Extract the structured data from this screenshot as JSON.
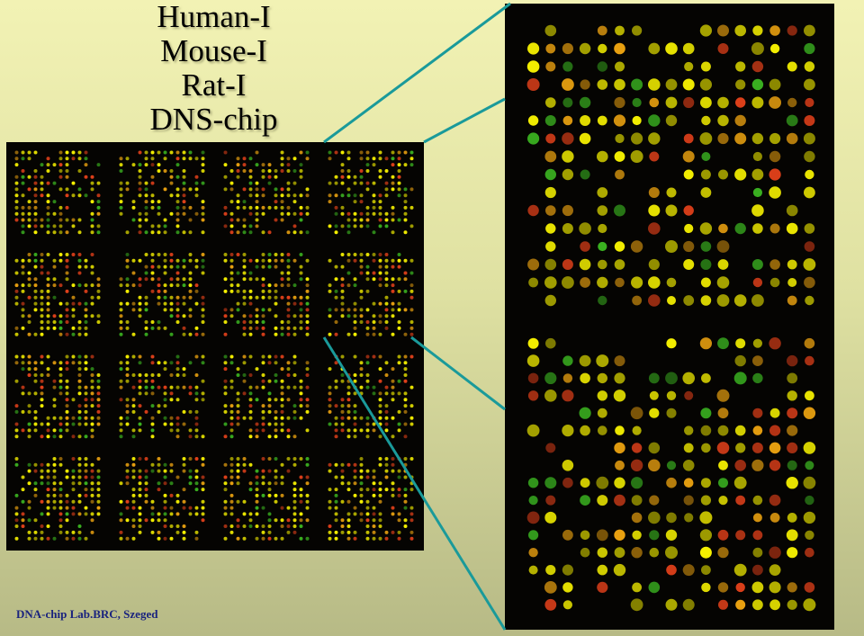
{
  "title_lines": [
    "Human-I",
    "Mouse-I",
    "Rat-I",
    "DNS-chip"
  ],
  "footer": "DNA-chip Lab.BRC, Szeged",
  "overview": {
    "grid_rows": 4,
    "grid_cols": 4
  },
  "zoom": {
    "blocks": 2
  },
  "colors": {
    "background_top": "#f2f2b4",
    "background_bottom": "#b7ba86",
    "chip_background": "#050402",
    "connector": "#1a9a9a",
    "spot_yellow": "#f5f000",
    "spot_red": "#e0401a",
    "spot_green": "#3ab020",
    "spot_orange": "#e8a010"
  }
}
